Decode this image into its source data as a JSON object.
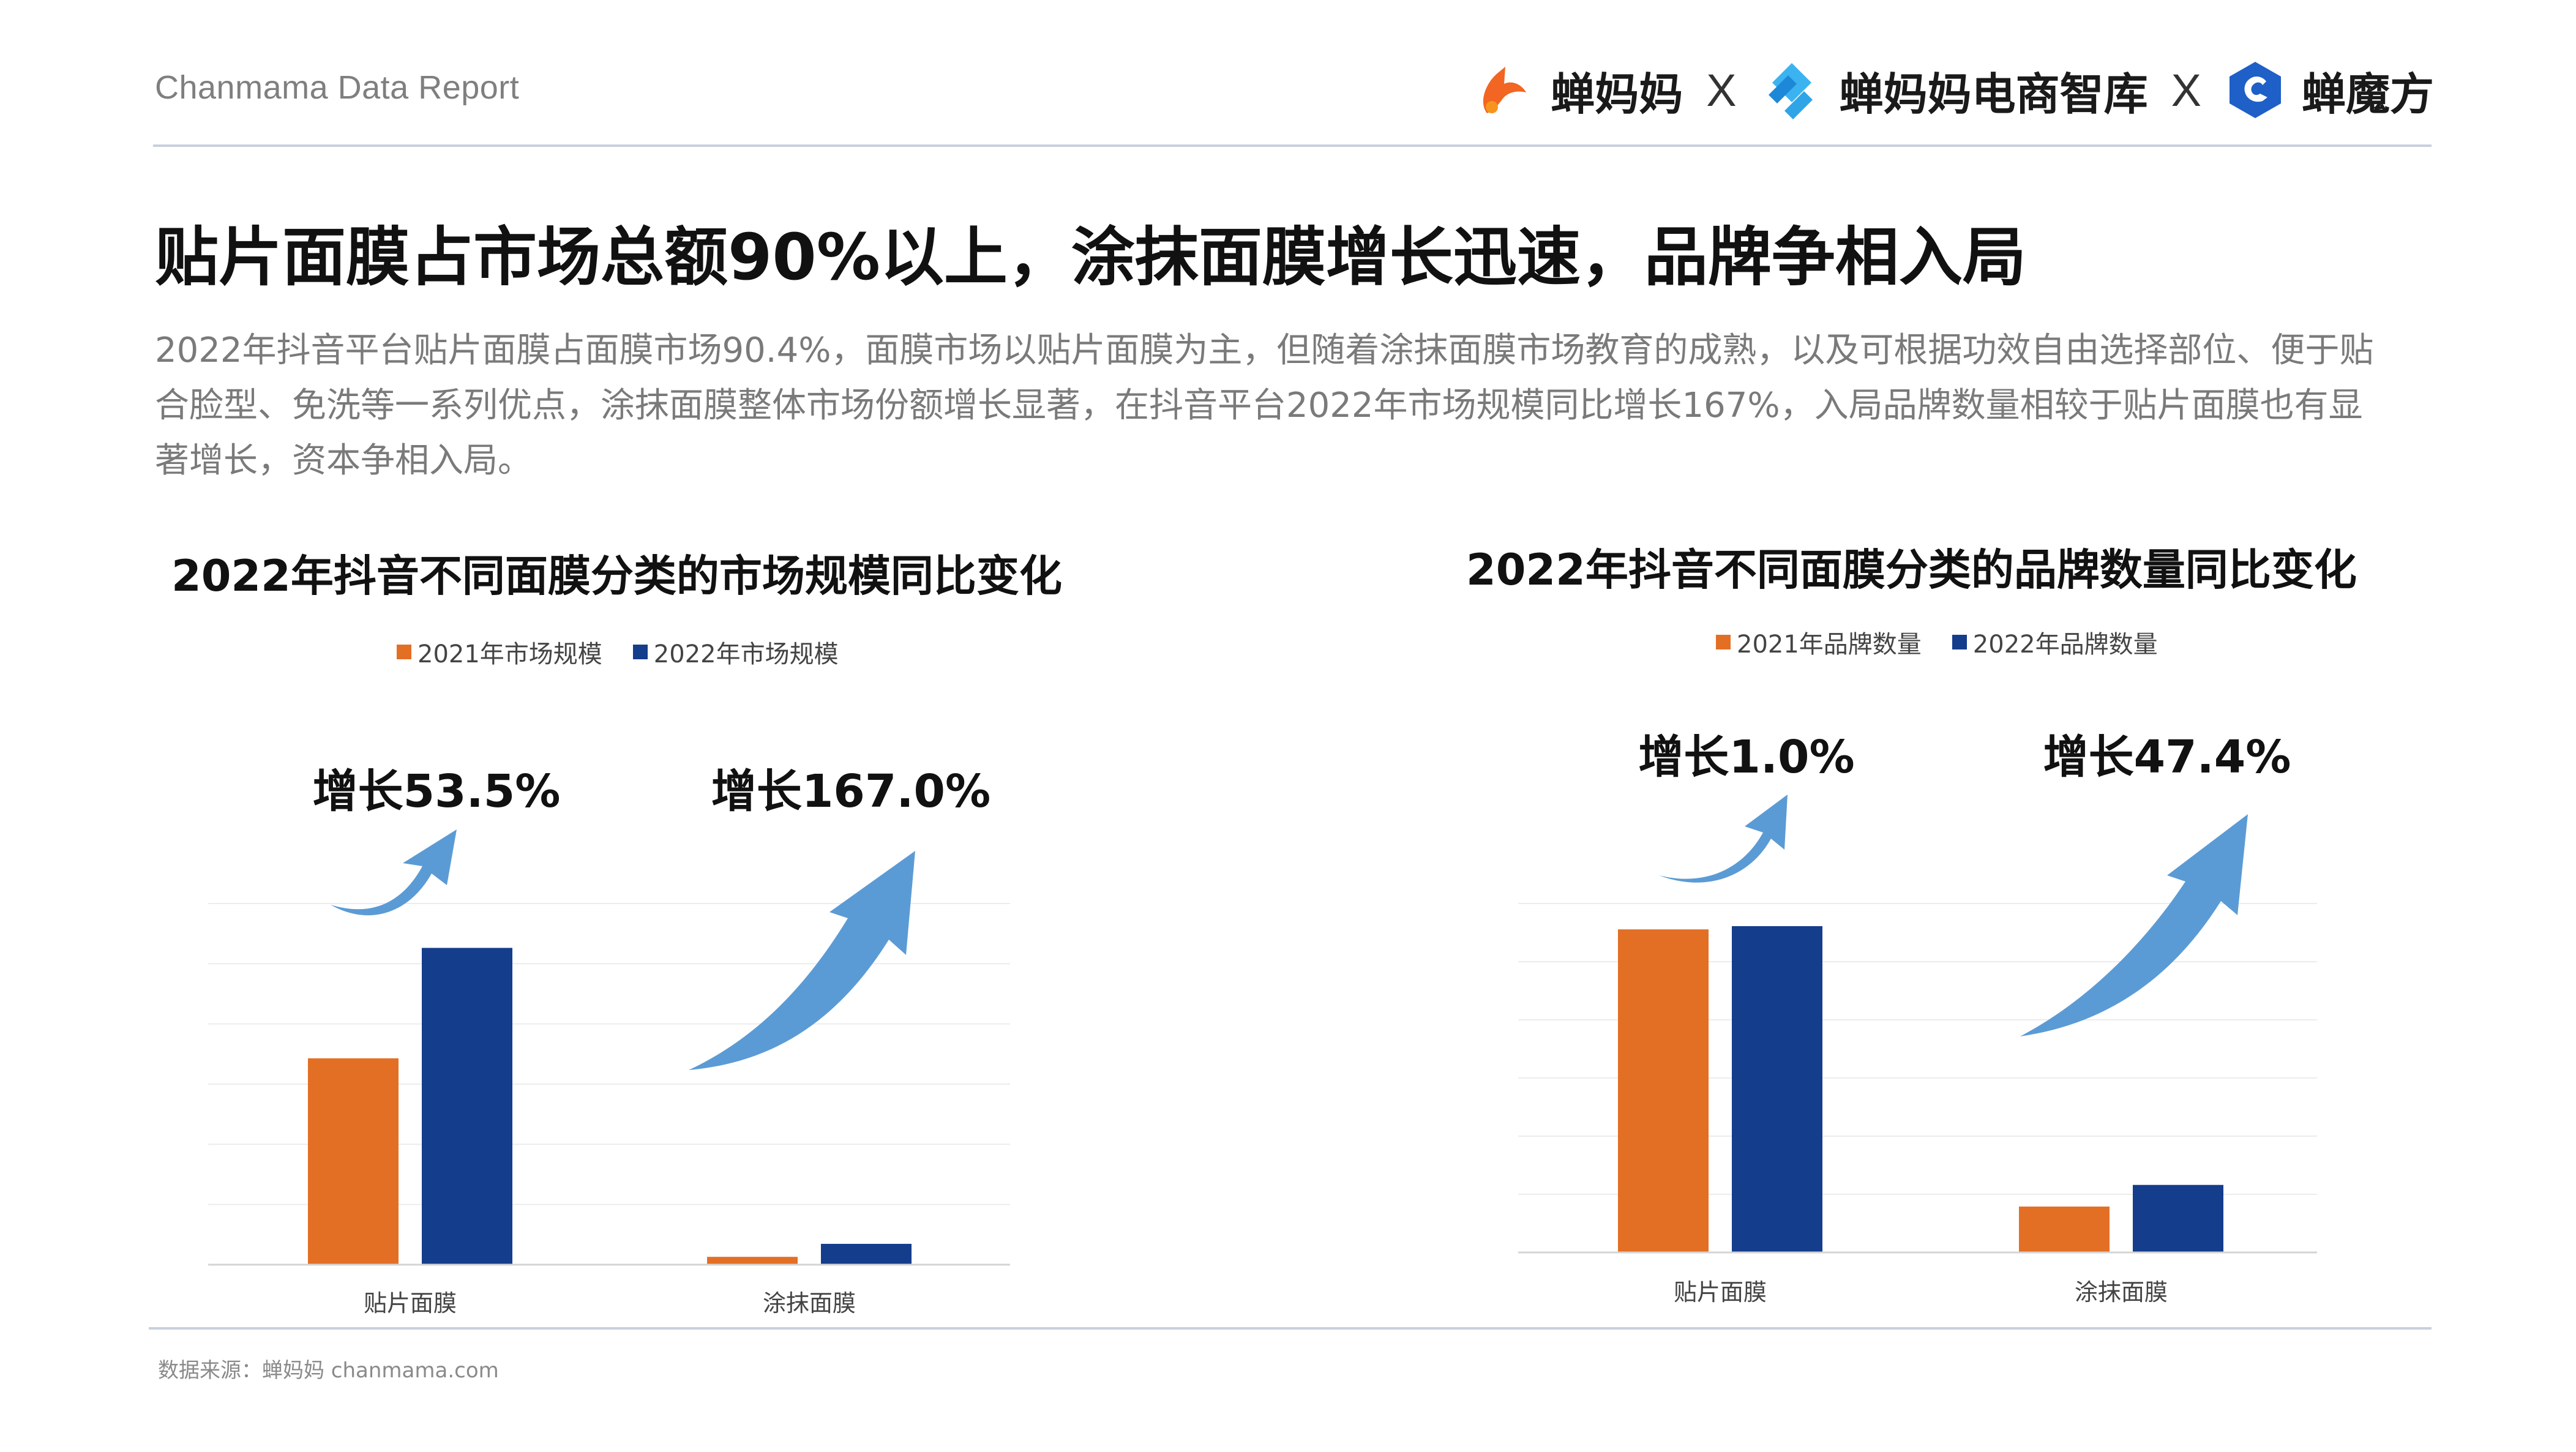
{
  "header": {
    "report_label": "Chanmama Data Report",
    "logos": [
      {
        "name": "蝉妈妈",
        "icon": "chanmama-logo-icon"
      },
      {
        "name": "蝉妈妈电商智库",
        "icon": "chanmama-think-tank-logo-icon"
      },
      {
        "name": "蝉魔方",
        "icon": "chanmofang-logo-icon"
      }
    ],
    "separator": "X"
  },
  "title": "贴片面膜占市场总额90%以上，涂抹面膜增长迅速，品牌争相入局",
  "description_lines": [
    "2022年抖音平台贴片面膜占面膜市场90.4%，面膜市场以贴片面膜为主，但随着涂抹面膜市场教育的成熟，以及可根据功效自由选择部位、便于贴",
    "合脸型、免洗等一系列优点，涂抹面膜整体市场份额增长显著，在抖音平台2022年市场规模同比增长167%，入局品牌数量相较于贴片面膜也有显",
    "著增长，资本争相入局。"
  ],
  "colors": {
    "orange": "#E36F25",
    "navy": "#143D8C",
    "arrow": "#5B9BD5",
    "grid": "#ECECEC",
    "axis": "#D4D4D4"
  },
  "chart_data": [
    {
      "type": "bar",
      "title": "2022年抖音不同面膜分类的市场规模同比变化",
      "categories": [
        "贴片面膜",
        "涂抹面膜"
      ],
      "series": [
        {
          "name": "2021年市场规模",
          "values": [
            100,
            3.8
          ]
        },
        {
          "name": "2022年市场规模",
          "values": [
            153.5,
            10.1
          ]
        }
      ],
      "ylim": [
        0,
        175
      ],
      "annotations": [
        "增长53.5%",
        "增长167.0%"
      ],
      "grid": true,
      "legend": "top-center",
      "yaxis_labels_shown": false
    },
    {
      "type": "bar",
      "title": "2022年抖音不同面膜分类的品牌数量同比变化",
      "categories": [
        "贴片面膜",
        "涂抹面膜"
      ],
      "series": [
        {
          "name": "2021年品牌数量",
          "values": [
            100,
            14.2
          ]
        },
        {
          "name": "2022年品牌数量",
          "values": [
            101,
            20.9
          ]
        }
      ],
      "ylim": [
        0,
        108
      ],
      "annotations": [
        "增长1.0%",
        "增长47.4%"
      ],
      "grid": true,
      "legend": "top-center",
      "yaxis_labels_shown": false
    }
  ],
  "footer": {
    "source": "数据来源：蝉妈妈   chanmama.com"
  }
}
